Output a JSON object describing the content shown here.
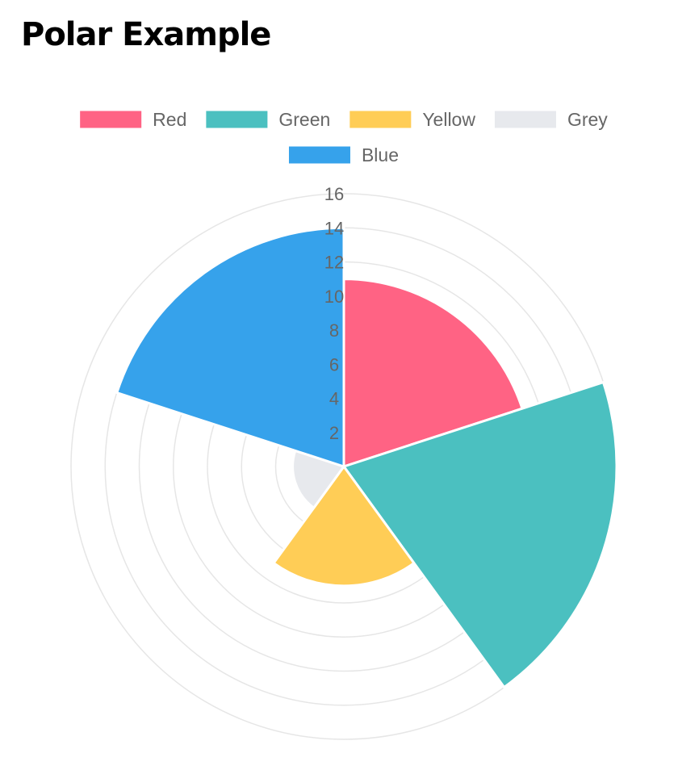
{
  "page": {
    "title": "Polar Example"
  },
  "chart_data": {
    "type": "polarArea",
    "title": "",
    "categories": [
      "Red",
      "Green",
      "Yellow",
      "Grey",
      "Blue"
    ],
    "values": [
      11,
      16,
      7,
      3,
      14
    ],
    "colors": [
      "#ff6384",
      "#4bc0c0",
      "#ffcd56",
      "#e7e9ed",
      "#36a2eb"
    ],
    "r_axis": {
      "min": 0,
      "max": 16,
      "step": 2,
      "tick_labels": [
        "2",
        "4",
        "6",
        "8",
        "10",
        "12",
        "14",
        "16"
      ]
    },
    "grid": true,
    "legend_position": "top"
  }
}
